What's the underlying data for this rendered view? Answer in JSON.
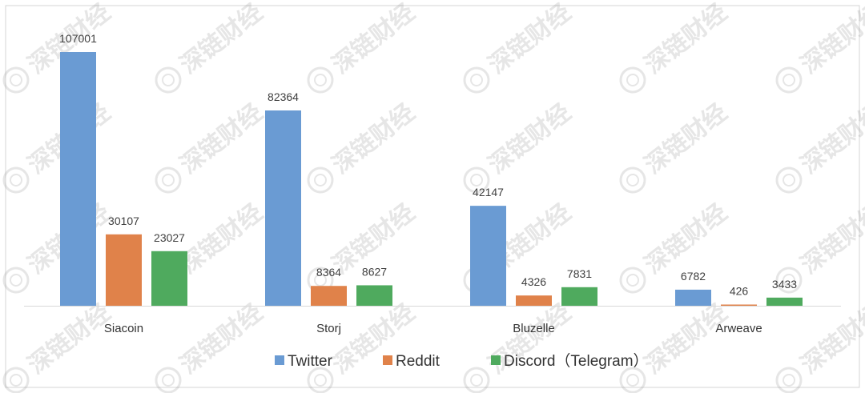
{
  "chart_data": {
    "type": "bar",
    "categories": [
      "Siacoin",
      "Storj",
      "Bluzelle",
      "Arweave"
    ],
    "series": [
      {
        "name": "Twitter",
        "values": [
          107001,
          82364,
          42147,
          6782
        ],
        "color": "#6a9bd3"
      },
      {
        "name": "Reddit",
        "values": [
          30107,
          8364,
          4326,
          426
        ],
        "color": "#e0824a"
      },
      {
        "name": "Discord（Telegram）",
        "values": [
          23027,
          8627,
          7831,
          3433
        ],
        "color": "#4faa5e"
      }
    ],
    "title": "",
    "xlabel": "",
    "ylabel": "",
    "ylim": [
      0,
      110000
    ],
    "grid": false,
    "legend": "bottom",
    "data_labels": true
  },
  "watermark": "深链财经"
}
